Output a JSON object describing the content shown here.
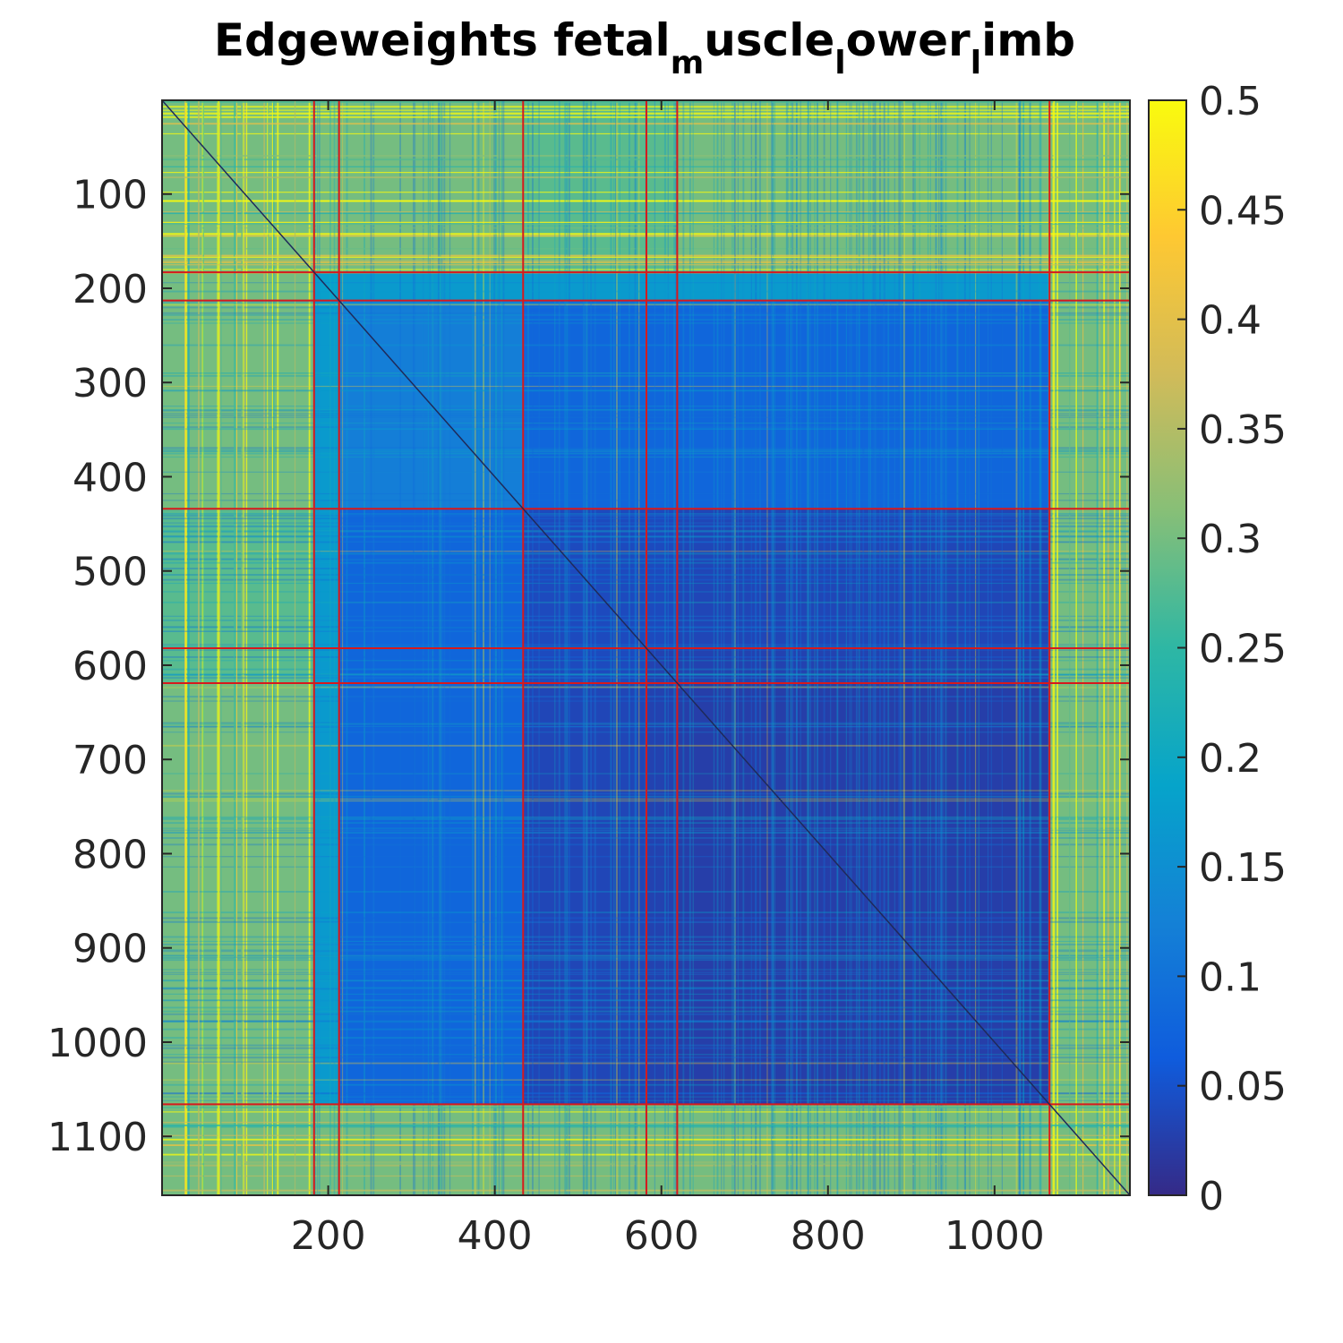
{
  "chart_data": {
    "type": "heatmap",
    "title": "Edgeweights fetal",
    "title_parts": [
      {
        "text": "Edgeweights fetal",
        "sub": false
      },
      {
        "text": "m",
        "sub": true
      },
      {
        "text": "uscle",
        "sub": false
      },
      {
        "text": "l",
        "sub": true
      },
      {
        "text": "ower",
        "sub": false
      },
      {
        "text": "l",
        "sub": true
      },
      {
        "text": "imb",
        "sub": false
      }
    ],
    "n": 1162,
    "xlim": [
      0.5,
      1162.5
    ],
    "ylim": [
      0.5,
      1162.5
    ],
    "x_ticks": [
      200,
      400,
      600,
      800,
      1000
    ],
    "x_tick_labels": [
      "200",
      "400",
      "600",
      "800",
      "1000"
    ],
    "y_ticks": [
      100,
      200,
      300,
      400,
      500,
      600,
      700,
      800,
      900,
      1000,
      1100
    ],
    "y_tick_labels": [
      "100",
      "200",
      "300",
      "400",
      "500",
      "600",
      "700",
      "800",
      "900",
      "1000",
      "1100"
    ],
    "y_direction": "reverse",
    "colorbar": {
      "range": [
        0,
        0.5
      ],
      "ticks": [
        0,
        0.05,
        0.1,
        0.15,
        0.2,
        0.25,
        0.3,
        0.35,
        0.4,
        0.45,
        0.5
      ],
      "tick_labels": [
        "0",
        "0.05",
        "0.1",
        "0.15",
        "0.2",
        "0.25",
        "0.3",
        "0.35",
        "0.4",
        "0.45",
        "0.5"
      ],
      "colormap": "parula"
    },
    "cluster_boundaries": [
      183,
      213,
      434,
      582,
      619,
      1066
    ],
    "block_mean_weights": [
      [
        0.3,
        0.3,
        0.3,
        0.28,
        0.28,
        0.3,
        0.3
      ],
      [
        0.3,
        0.18,
        0.17,
        0.17,
        0.17,
        0.17,
        0.3
      ],
      [
        0.3,
        0.17,
        0.12,
        0.08,
        0.08,
        0.08,
        0.3
      ],
      [
        0.28,
        0.17,
        0.08,
        0.04,
        0.04,
        0.035,
        0.3
      ],
      [
        0.28,
        0.17,
        0.08,
        0.04,
        0.03,
        0.03,
        0.3
      ],
      [
        0.3,
        0.17,
        0.08,
        0.035,
        0.03,
        0.025,
        0.3
      ],
      [
        0.3,
        0.3,
        0.3,
        0.3,
        0.3,
        0.3,
        0.3
      ]
    ],
    "boundary_line_color": "#d7191c",
    "grid": false
  },
  "colors": {
    "axis": "#262626",
    "background": "#ffffff",
    "parula_stops": [
      "#352a87",
      "#0f5cdd",
      "#1481d6",
      "#06a4ca",
      "#2eb7a4",
      "#87bf77",
      "#d1bb59",
      "#fec832",
      "#f9fb0e"
    ]
  }
}
